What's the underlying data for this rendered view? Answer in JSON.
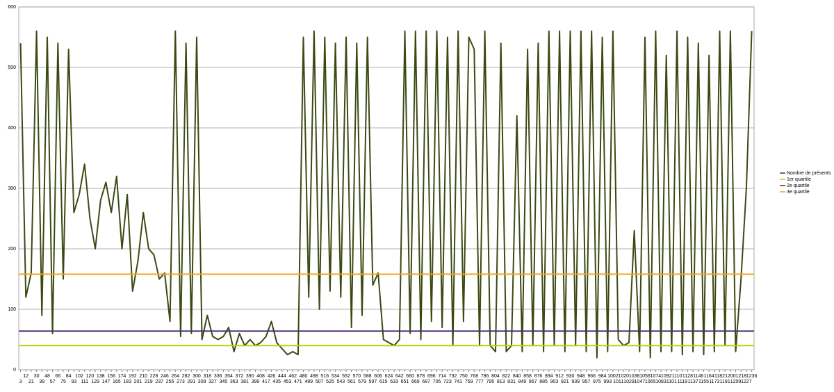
{
  "chart_data": {
    "type": "line",
    "x": [
      3,
      12,
      21,
      30,
      39,
      48,
      57,
      66,
      75,
      84,
      93,
      102,
      111,
      120,
      129,
      138,
      147,
      156,
      165,
      174,
      183,
      192,
      201,
      210,
      219,
      228,
      237,
      246,
      255,
      264,
      273,
      282,
      291,
      300,
      309,
      318,
      327,
      336,
      345,
      354,
      363,
      372,
      381,
      390,
      399,
      408,
      417,
      426,
      435,
      444,
      453,
      462,
      471,
      480,
      489,
      498,
      507,
      516,
      525,
      534,
      543,
      552,
      561,
      570,
      579,
      588,
      597,
      606,
      615,
      624,
      633,
      642,
      651,
      660,
      669,
      678,
      687,
      696,
      705,
      714,
      723,
      732,
      741,
      750,
      759,
      768,
      777,
      786,
      795,
      804,
      813,
      822,
      831,
      840,
      849,
      858,
      867,
      876,
      885,
      894,
      903,
      912,
      921,
      930,
      939,
      948,
      957,
      966,
      975,
      984,
      993,
      1002,
      1011,
      1020,
      1029,
      1038,
      1047,
      1056,
      1065,
      1074,
      1083,
      1092,
      1101,
      1110,
      1119,
      1128,
      1137,
      1146,
      1155,
      1164,
      1173,
      1182,
      1191,
      1200,
      1209,
      1218,
      1227,
      1236
    ],
    "series": [
      {
        "name": "Nombre de présents",
        "color": "#3b4a12",
        "values": [
          540,
          120,
          160,
          560,
          90,
          550,
          60,
          540,
          150,
          530,
          260,
          290,
          340,
          250,
          200,
          280,
          310,
          260,
          320,
          200,
          290,
          130,
          180,
          260,
          200,
          190,
          150,
          160,
          80,
          560,
          55,
          540,
          60,
          550,
          50,
          90,
          55,
          50,
          55,
          70,
          30,
          60,
          40,
          50,
          40,
          45,
          55,
          80,
          45,
          35,
          25,
          30,
          25,
          550,
          120,
          560,
          100,
          550,
          130,
          540,
          120,
          550,
          70,
          540,
          90,
          550,
          140,
          160,
          50,
          45,
          40,
          50,
          560,
          60,
          560,
          50,
          560,
          80,
          560,
          70,
          550,
          40,
          560,
          80,
          550,
          530,
          40,
          560,
          40,
          30,
          540,
          30,
          40,
          420,
          30,
          530,
          40,
          540,
          30,
          560,
          40,
          560,
          30,
          560,
          40,
          560,
          30,
          560,
          20,
          550,
          30,
          560,
          50,
          40,
          45,
          230,
          30,
          550,
          20,
          560,
          30,
          520,
          30,
          560,
          25,
          550,
          30,
          540,
          25,
          520,
          30,
          560,
          40,
          560,
          30,
          150,
          300,
          560
        ]
      }
    ],
    "quartiles": [
      {
        "name": "1er quartile",
        "color": "#b8d200",
        "value": 40
      },
      {
        "name": "2e quartile",
        "color": "#4b2a6e",
        "value": 64
      },
      {
        "name": "3e quartile",
        "color": "#f5a21e",
        "value": 158
      }
    ],
    "xlim": [
      0,
      1240
    ],
    "xticks": [
      3,
      12,
      21,
      30,
      39,
      48,
      57,
      66,
      75,
      84,
      93,
      102,
      111,
      120,
      129,
      138,
      147,
      156,
      165,
      174,
      183,
      192,
      201,
      210,
      219,
      228,
      237,
      246,
      255,
      264,
      273,
      282,
      291,
      300,
      309,
      318,
      327,
      336,
      345,
      354,
      363,
      372,
      381,
      390,
      399,
      408,
      417,
      426,
      435,
      444,
      453,
      462,
      471,
      480,
      489,
      498,
      507,
      516,
      525,
      534,
      543,
      552,
      561,
      570,
      579,
      588,
      597,
      606,
      615,
      624,
      633,
      642,
      651,
      660,
      669,
      678,
      687,
      696,
      705,
      714,
      723,
      732,
      741,
      750,
      759,
      768,
      777,
      786,
      795,
      804,
      813,
      822,
      831,
      840,
      849,
      858,
      867,
      876,
      885,
      894,
      903,
      912,
      921,
      930,
      939,
      948,
      957,
      966,
      975,
      984,
      993,
      1002,
      1011,
      1020,
      1029,
      1038,
      1047,
      1056,
      1065,
      1074,
      1083,
      1092,
      1101,
      1110,
      1119,
      1128,
      1137,
      1146,
      1155,
      1164,
      1173,
      1182,
      1191,
      1200,
      1209,
      1218,
      1227,
      1236
    ],
    "ylim": [
      0,
      600
    ],
    "yticks": [
      0,
      100,
      200,
      300,
      400,
      500,
      600
    ],
    "grid": true
  }
}
